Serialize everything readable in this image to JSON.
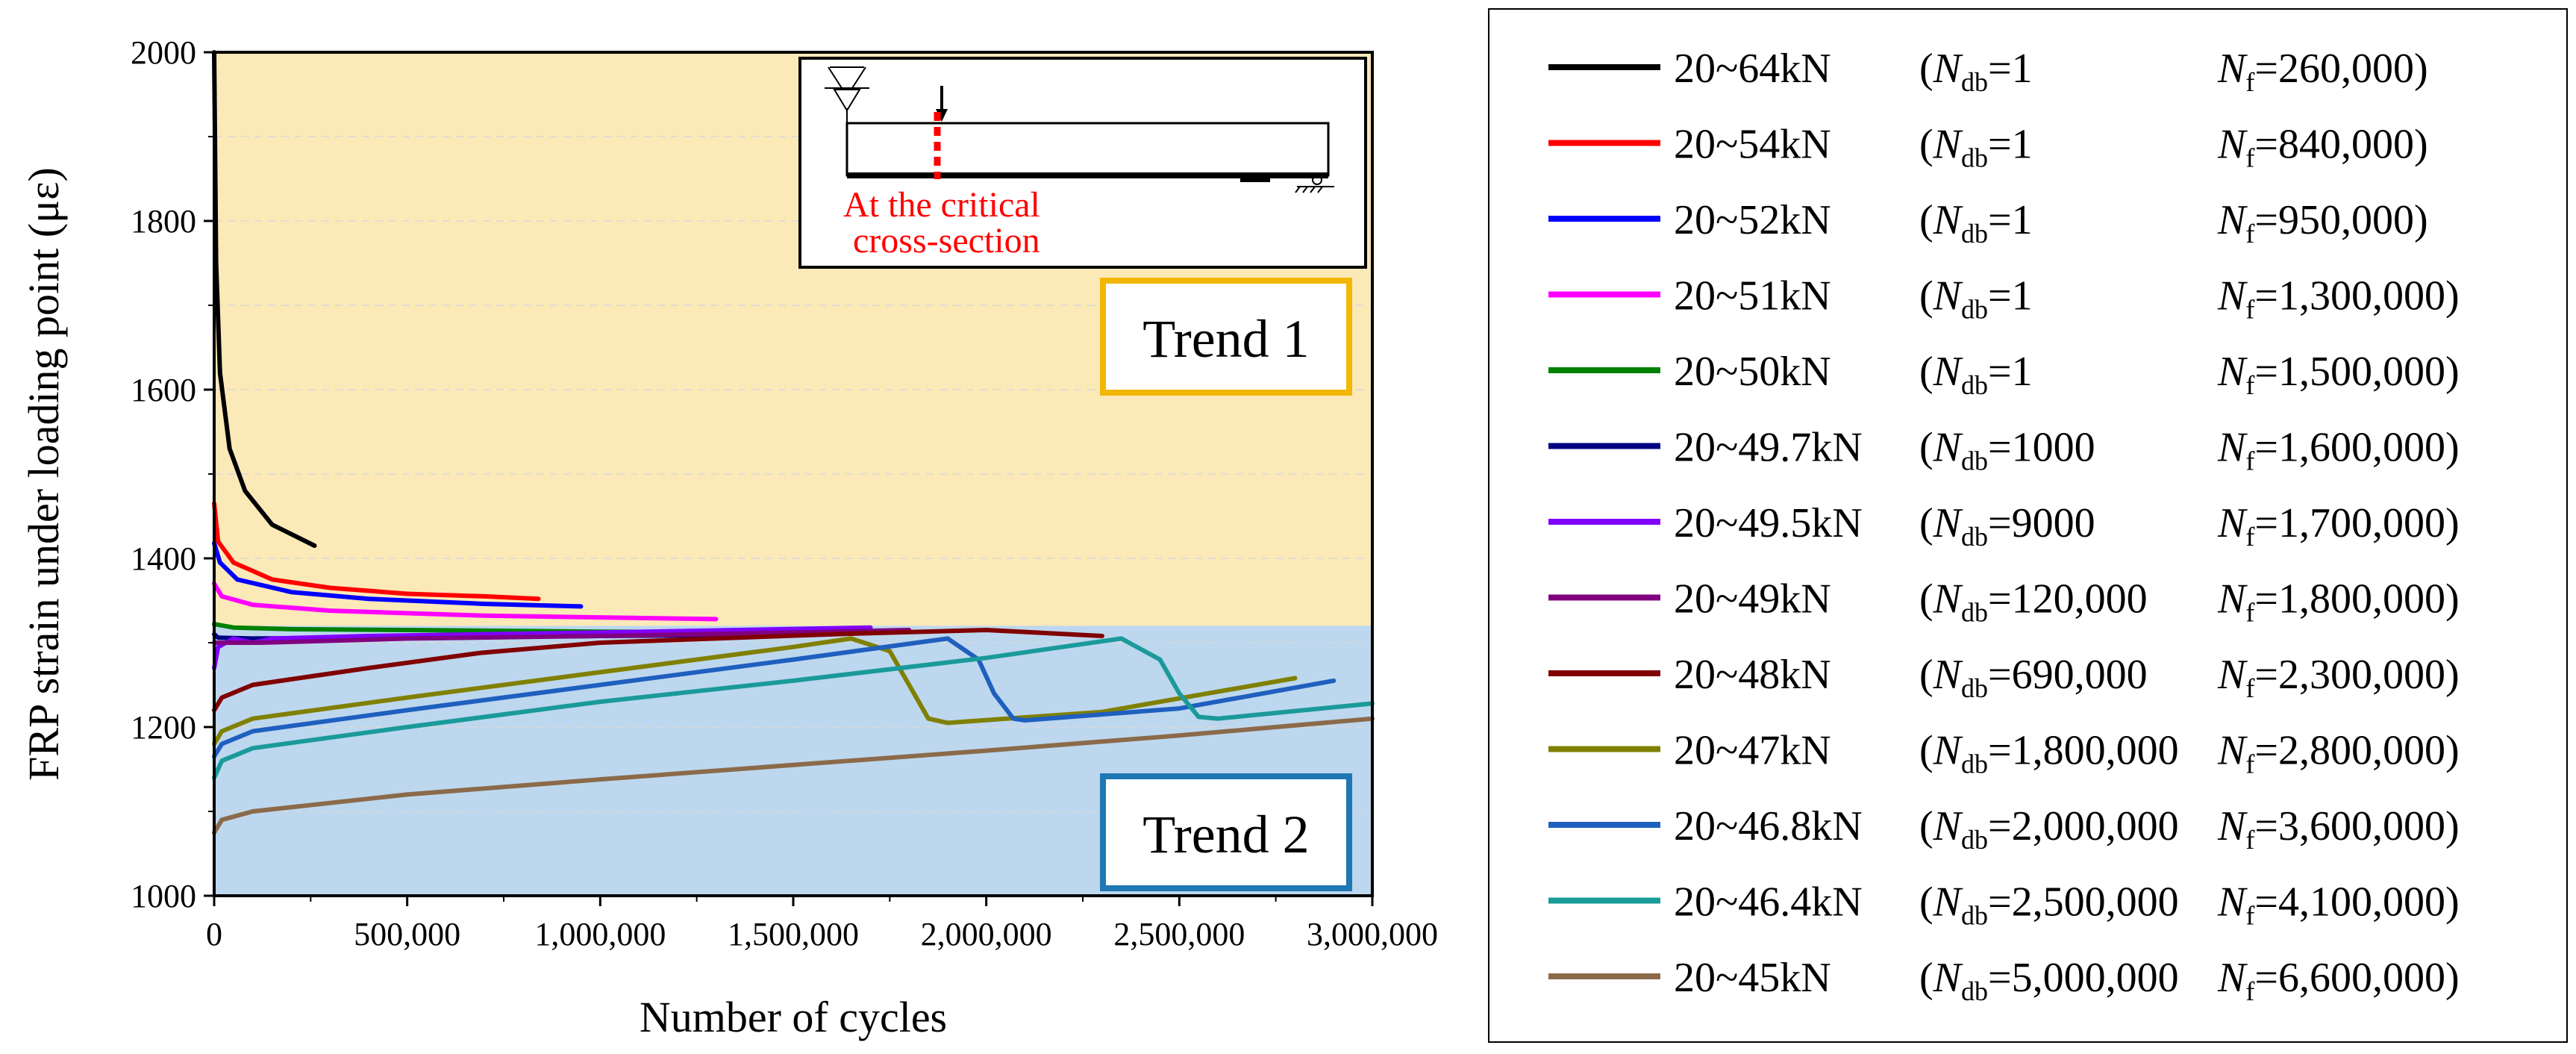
{
  "chart_data": {
    "type": "line",
    "xlabel": "Number of cycles",
    "ylabel": "FRP strain under loading point (με)",
    "xlim": [
      0,
      3000000
    ],
    "ylim": [
      1000,
      2000
    ],
    "xticks": [
      0,
      500000,
      1000000,
      1500000,
      2000000,
      2500000,
      3000000
    ],
    "xtick_labels": [
      "0",
      "500,000",
      "1,000,000",
      "1,500,000",
      "2,000,000",
      "2,500,000",
      "3,000,000"
    ],
    "yticks": [
      1000,
      1200,
      1400,
      1600,
      1800,
      2000
    ],
    "ytick_labels": [
      "1000",
      "1200",
      "1400",
      "1600",
      "1800",
      "2000"
    ],
    "regions": [
      {
        "name": "Trend 1",
        "label": "Trend 1",
        "y_from": 1320,
        "y_to": 2000,
        "color": "#FCE9B8",
        "border": "#F2B705"
      },
      {
        "name": "Trend 2",
        "label": "Trend 2",
        "y_from": 1000,
        "y_to": 1320,
        "color": "#BDD7EE",
        "border": "#1F77B4"
      }
    ],
    "inset": {
      "caption_line1": "At the critical",
      "caption_line2": "cross-section",
      "caption_color": "#FF0000"
    },
    "legend_sub_db": "db",
    "legend_sub_f": "f",
    "legend_n": "N",
    "series": [
      {
        "name": "20~64kN",
        "n_db": "(N_db=1",
        "db_value": "=1",
        "nf_value": "=260,000)",
        "color": "#000000",
        "points": [
          [
            0,
            2000
          ],
          [
            5000,
            1750
          ],
          [
            15000,
            1620
          ],
          [
            40000,
            1530
          ],
          [
            80000,
            1480
          ],
          [
            150000,
            1440
          ],
          [
            260000,
            1415
          ]
        ]
      },
      {
        "name": "20~54kN",
        "db_value": "=1",
        "nf_value": "=840,000)",
        "color": "#FF0000",
        "points": [
          [
            0,
            1465
          ],
          [
            10000,
            1420
          ],
          [
            50000,
            1395
          ],
          [
            150000,
            1375
          ],
          [
            300000,
            1365
          ],
          [
            500000,
            1358
          ],
          [
            700000,
            1355
          ],
          [
            840000,
            1352
          ]
        ]
      },
      {
        "name": "20~52kN",
        "db_value": "=1",
        "nf_value": "=950,000)",
        "color": "#0000FF",
        "points": [
          [
            0,
            1418
          ],
          [
            15000,
            1395
          ],
          [
            60000,
            1375
          ],
          [
            200000,
            1360
          ],
          [
            400000,
            1352
          ],
          [
            700000,
            1346
          ],
          [
            950000,
            1343
          ]
        ]
      },
      {
        "name": "20~51kN",
        "db_value": "=1",
        "nf_value": "=1,300,000)",
        "color": "#FF00FF",
        "points": [
          [
            0,
            1370
          ],
          [
            20000,
            1355
          ],
          [
            100000,
            1345
          ],
          [
            300000,
            1338
          ],
          [
            700000,
            1332
          ],
          [
            1000000,
            1330
          ],
          [
            1300000,
            1328
          ]
        ]
      },
      {
        "name": "20~50kN",
        "db_value": "=1",
        "nf_value": "=1,500,000)",
        "color": "#008000",
        "points": [
          [
            0,
            1322
          ],
          [
            50000,
            1318
          ],
          [
            200000,
            1316
          ],
          [
            500000,
            1315
          ],
          [
            1000000,
            1313
          ],
          [
            1500000,
            1312
          ]
        ]
      },
      {
        "name": "20~49.7kN",
        "db_value": "=1000",
        "nf_value": "=1,600,000)",
        "color": "#000080",
        "points": [
          [
            0,
            1310
          ],
          [
            10000,
            1306
          ],
          [
            100000,
            1305
          ],
          [
            500000,
            1306
          ],
          [
            1000000,
            1308
          ],
          [
            1600000,
            1310
          ]
        ]
      },
      {
        "name": "20~49.5kN",
        "db_value": "=9000",
        "nf_value": "=1,700,000)",
        "color": "#8000FF",
        "points": [
          [
            0,
            1270
          ],
          [
            10000,
            1295
          ],
          [
            50000,
            1305
          ],
          [
            100000,
            1300
          ],
          [
            150000,
            1305
          ],
          [
            400000,
            1308
          ],
          [
            1000000,
            1312
          ],
          [
            1700000,
            1318
          ]
        ]
      },
      {
        "name": "20~49kN",
        "db_value": "=120,000",
        "nf_value": "=1,800,000)",
        "color": "#800080",
        "points": [
          [
            0,
            1300
          ],
          [
            120000,
            1300
          ],
          [
            500000,
            1305
          ],
          [
            1000000,
            1308
          ],
          [
            1500000,
            1312
          ],
          [
            1800000,
            1315
          ]
        ]
      },
      {
        "name": "20~48kN",
        "db_value": "=690,000",
        "nf_value": "=2,300,000)",
        "color": "#800000",
        "points": [
          [
            0,
            1220
          ],
          [
            20000,
            1235
          ],
          [
            100000,
            1250
          ],
          [
            400000,
            1270
          ],
          [
            690000,
            1288
          ],
          [
            1000000,
            1300
          ],
          [
            1600000,
            1310
          ],
          [
            2000000,
            1315
          ],
          [
            2300000,
            1308
          ]
        ]
      },
      {
        "name": "20~47kN",
        "db_value": "=1,800,000",
        "nf_value": "=2,800,000)",
        "color": "#808000",
        "points": [
          [
            0,
            1180
          ],
          [
            20000,
            1195
          ],
          [
            100000,
            1210
          ],
          [
            500000,
            1235
          ],
          [
            1000000,
            1265
          ],
          [
            1500000,
            1295
          ],
          [
            1650000,
            1305
          ],
          [
            1750000,
            1290
          ],
          [
            1800000,
            1250
          ],
          [
            1850000,
            1210
          ],
          [
            1900000,
            1205
          ],
          [
            2300000,
            1218
          ],
          [
            2800000,
            1258
          ]
        ]
      },
      {
        "name": "20~46.8kN",
        "db_value": "=2,000,000",
        "nf_value": "=3,600,000)",
        "color": "#1F5FBF",
        "points": [
          [
            0,
            1165
          ],
          [
            20000,
            1180
          ],
          [
            100000,
            1195
          ],
          [
            500000,
            1220
          ],
          [
            1000000,
            1250
          ],
          [
            1500000,
            1280
          ],
          [
            1900000,
            1305
          ],
          [
            1980000,
            1280
          ],
          [
            2020000,
            1240
          ],
          [
            2070000,
            1210
          ],
          [
            2100000,
            1208
          ],
          [
            2500000,
            1222
          ],
          [
            2900000,
            1255
          ]
        ]
      },
      {
        "name": "20~46.4kN",
        "db_value": "=2,500,000",
        "nf_value": "=4,100,000)",
        "color": "#1A9A9A",
        "points": [
          [
            0,
            1140
          ],
          [
            20000,
            1160
          ],
          [
            100000,
            1175
          ],
          [
            500000,
            1200
          ],
          [
            1000000,
            1230
          ],
          [
            1500000,
            1255
          ],
          [
            2000000,
            1282
          ],
          [
            2350000,
            1305
          ],
          [
            2450000,
            1280
          ],
          [
            2500000,
            1240
          ],
          [
            2550000,
            1212
          ],
          [
            2600000,
            1210
          ],
          [
            3000000,
            1228
          ]
        ]
      },
      {
        "name": "20~45kN",
        "db_value": "=5,000,000",
        "nf_value": "=6,600,000)",
        "color": "#8B6A4A",
        "points": [
          [
            0,
            1075
          ],
          [
            20000,
            1090
          ],
          [
            100000,
            1100
          ],
          [
            500000,
            1120
          ],
          [
            1000000,
            1138
          ],
          [
            1500000,
            1155
          ],
          [
            2000000,
            1172
          ],
          [
            2500000,
            1190
          ],
          [
            3000000,
            1210
          ]
        ]
      }
    ]
  }
}
